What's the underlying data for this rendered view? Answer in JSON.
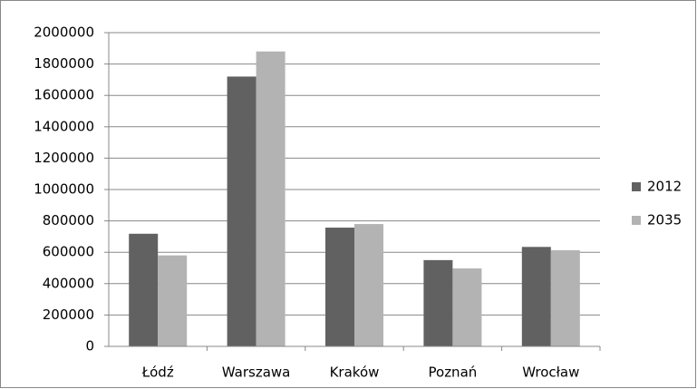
{
  "chart_data": {
    "type": "bar",
    "categories": [
      "Łódź",
      "Warszawa",
      "Kraków",
      "Poznań",
      "Wrocław"
    ],
    "series": [
      {
        "name": "2012",
        "color": "#616161",
        "values": [
          718000,
          1720000,
          757000,
          550000,
          634000
        ]
      },
      {
        "name": "2035",
        "color": "#b3b3b3",
        "values": [
          580000,
          1880000,
          780000,
          497000,
          613000
        ]
      }
    ],
    "ylim": [
      0,
      2000000
    ],
    "yticks": [
      0,
      200000,
      400000,
      600000,
      800000,
      1000000,
      1200000,
      1400000,
      1600000,
      1800000,
      2000000
    ],
    "grid": true,
    "legend": "right"
  }
}
